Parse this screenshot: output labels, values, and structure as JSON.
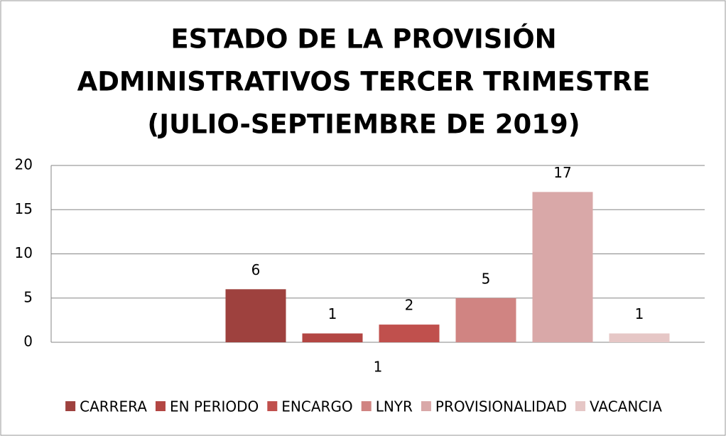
{
  "chart_data": {
    "type": "bar",
    "title": [
      "ESTADO DE LA PROVISIÓN",
      "ADMINISTRATIVOS TERCER TRIMESTRE",
      "(JULIO-SEPTIEMBRE DE 2019)"
    ],
    "categories": [
      "1"
    ],
    "series": [
      {
        "name": "CARRERA",
        "color": "#9e413e",
        "values": [
          6
        ]
      },
      {
        "name": "EN PERIODO",
        "color": "#b34643",
        "values": [
          1
        ]
      },
      {
        "name": "ENCARGO",
        "color": "#c0504d",
        "values": [
          2
        ]
      },
      {
        "name": "LNYR",
        "color": "#d08482",
        "values": [
          5
        ]
      },
      {
        "name": "PROVISIONALIDAD",
        "color": "#d9a8a8",
        "values": [
          17
        ]
      },
      {
        "name": "VACANCIA",
        "color": "#e6c7c6",
        "values": [
          1
        ]
      }
    ],
    "ylim": [
      0,
      20
    ],
    "yticks": [
      0,
      5,
      10,
      15,
      20
    ],
    "grid": true,
    "legend": "bottom",
    "data_labels": true
  }
}
